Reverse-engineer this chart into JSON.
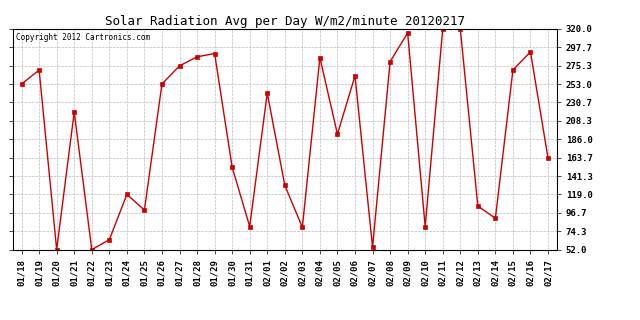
{
  "title": "Solar Radiation Avg per Day W/m2/minute 20120217",
  "copyright": "Copyright 2012 Cartronics.com",
  "dates": [
    "01/18",
    "01/19",
    "01/20",
    "01/21",
    "01/22",
    "01/23",
    "01/24",
    "01/25",
    "01/26",
    "01/27",
    "01/28",
    "01/29",
    "01/30",
    "01/31",
    "02/01",
    "02/02",
    "02/03",
    "02/04",
    "02/05",
    "02/06",
    "02/07",
    "02/08",
    "02/09",
    "02/10",
    "02/11",
    "02/12",
    "02/13",
    "02/14",
    "02/15",
    "02/16",
    "02/17"
  ],
  "values": [
    253.0,
    270.0,
    52.0,
    219.0,
    52.0,
    64.0,
    119.0,
    100.0,
    253.0,
    275.0,
    286.0,
    290.0,
    152.0,
    80.0,
    242.0,
    130.0,
    79.0,
    285.0,
    192.0,
    263.0,
    55.0,
    280.0,
    315.0,
    80.0,
    320.0,
    320.0,
    105.0,
    90.0,
    270.0,
    292.0,
    163.0
  ],
  "ylim": [
    52.0,
    320.0
  ],
  "yticks": [
    52.0,
    74.3,
    96.7,
    119.0,
    141.3,
    163.7,
    186.0,
    208.3,
    230.7,
    253.0,
    275.3,
    297.7,
    320.0
  ],
  "line_color": "#cc0000",
  "marker": "s",
  "marker_size": 2.5,
  "bg_color": "#ffffff",
  "grid_color": "#bbbbbb",
  "title_fontsize": 9,
  "tick_fontsize": 6.5,
  "copyright_fontsize": 5.5
}
